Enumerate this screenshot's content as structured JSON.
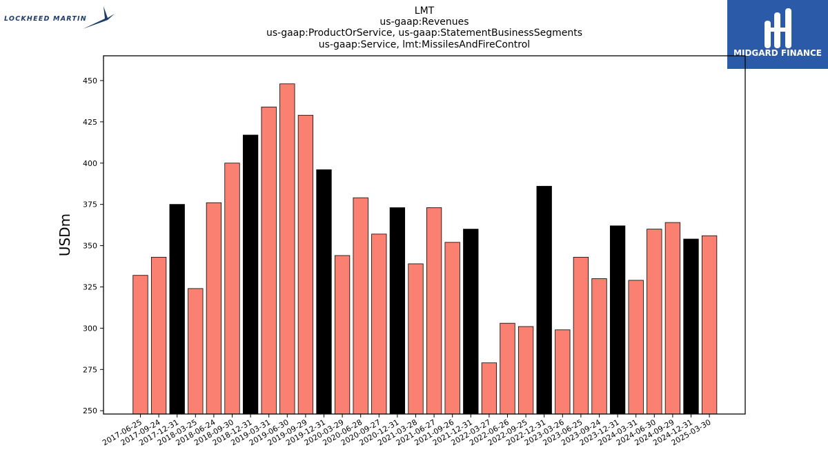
{
  "logos": {
    "left": "LOCKHEED MARTIN",
    "right": "MIDGARD FINANCE"
  },
  "colors": {
    "bar_default": "#fa8072",
    "bar_highlight": "#000000",
    "right_logo_bg": "#2b5aa9"
  },
  "chart_data": {
    "type": "bar",
    "title_lines": [
      "LMT",
      "us-gaap:Revenues",
      "us-gaap:ProductOrService, us-gaap:StatementBusinessSegments",
      "us-gaap:Service, lmt:MissilesAndFireControl"
    ],
    "xlabel": "",
    "ylabel": "USDm",
    "ylim": [
      248,
      465
    ],
    "yticks": [
      250,
      275,
      300,
      325,
      350,
      375,
      400,
      425,
      450
    ],
    "grid": false,
    "categories": [
      "2017-06-25",
      "2017-09-24",
      "2017-12-31",
      "2018-03-25",
      "2018-06-24",
      "2018-09-30",
      "2018-12-31",
      "2019-03-31",
      "2019-06-30",
      "2019-09-29",
      "2019-12-31",
      "2020-03-29",
      "2020-06-28",
      "2020-09-27",
      "2020-12-31",
      "2021-03-28",
      "2021-06-27",
      "2021-09-26",
      "2021-12-31",
      "2022-03-27",
      "2022-06-26",
      "2022-09-25",
      "2022-12-31",
      "2023-03-26",
      "2023-06-25",
      "2023-09-24",
      "2023-12-31",
      "2024-03-31",
      "2024-06-30",
      "2024-09-29",
      "2024-12-31",
      "2025-03-30"
    ],
    "values": [
      332,
      343,
      375,
      324,
      376,
      400,
      417,
      434,
      448,
      429,
      396,
      344,
      379,
      357,
      373,
      339,
      373,
      352,
      360,
      279,
      303,
      301,
      386,
      299,
      343,
      330,
      362,
      329,
      360,
      364,
      354,
      356
    ],
    "highlight": [
      false,
      false,
      true,
      false,
      false,
      false,
      true,
      false,
      false,
      false,
      true,
      false,
      false,
      false,
      true,
      false,
      false,
      false,
      true,
      false,
      false,
      false,
      true,
      false,
      false,
      false,
      true,
      false,
      false,
      false,
      true,
      false
    ]
  }
}
